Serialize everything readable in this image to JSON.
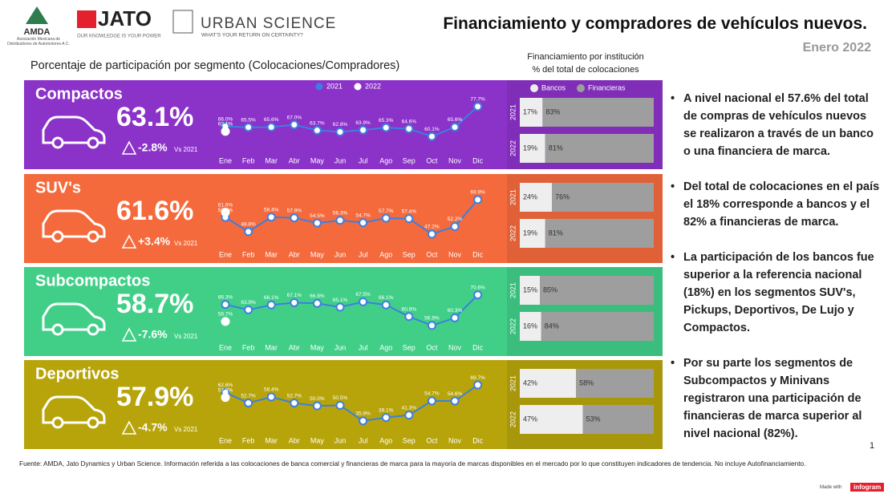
{
  "logos": {
    "amda": "AMDA",
    "amda_sub": "Asociación Mexicana de Distribuidores de Automotores A.C.",
    "jato": "JATO",
    "jato_tagline": "OUR KNOWLEDGE IS YOUR POWER",
    "urban": "URBAN SCIENCE",
    "urban_tagline": "WHAT'S YOUR RETURN ON CERTAINTY?"
  },
  "header": {
    "title": "Financiamiento y compradores de vehículos nuevos.",
    "date": "Enero 2022",
    "subtitle": "Porcentaje de participación por segmento (Colocaciones/Compradores)"
  },
  "segments": [
    {
      "name": "Compactos",
      "headline": "63.1%",
      "delta": "-2.8%",
      "vs": "Vs 2021",
      "color": "#8b32c8"
    },
    {
      "name": "SUV's",
      "headline": "61.6%",
      "delta": "+3.4%",
      "vs": "Vs 2021",
      "color": "#f46a3c"
    },
    {
      "name": "Subcompactos",
      "headline": "58.7%",
      "delta": "-7.6%",
      "vs": "Vs 2021",
      "color": "#41cf88"
    },
    {
      "name": "Deportivos",
      "headline": "57.9%",
      "delta": "-4.7%",
      "vs": "Vs 2021",
      "color": "#b7a40b"
    }
  ],
  "chart_data": [
    {
      "type": "line",
      "categories": [
        "Ene",
        "Feb",
        "Mar",
        "Abr",
        "May",
        "Jun",
        "Jul",
        "Ago",
        "Sep",
        "Oct",
        "Nov",
        "Dic"
      ],
      "ylim": [
        55,
        80
      ],
      "series": [
        {
          "name": "2021",
          "color": "#3d7fe0",
          "values": [
            66.0,
            65.5,
            65.6,
            67.0,
            63.7,
            62.8,
            63.9,
            65.3,
            64.6,
            60.1,
            65.6,
            77.7
          ],
          "value_labels": [
            "66.0%",
            "65.5%",
            "65.6%",
            "67.0%",
            "63.7%",
            "62.8%",
            "63.9%",
            "65.3%",
            "64.6%",
            "60.1%",
            "65.6%",
            "77.7%"
          ]
        },
        {
          "name": "2022",
          "color": "#ffffff",
          "values": [
            63.1,
            null,
            null,
            null,
            null,
            null,
            null,
            null,
            null,
            null,
            null,
            null
          ],
          "value_labels": [
            "63.1%",
            null,
            null,
            null,
            null,
            null,
            null,
            null,
            null,
            null,
            null,
            null
          ]
        }
      ]
    },
    {
      "type": "line",
      "categories": [
        "Ene",
        "Feb",
        "Mar",
        "Abr",
        "May",
        "Jun",
        "Jul",
        "Ago",
        "Sep",
        "Oct",
        "Nov",
        "Dic"
      ],
      "ylim": [
        44,
        72
      ],
      "series": [
        {
          "color": "#3d7fe0",
          "values": [
            58.2,
            48.8,
            58.4,
            57.9,
            54.5,
            56.3,
            54.7,
            57.7,
            57.4,
            47.2,
            52.2,
            69.9
          ],
          "value_labels": [
            "58.2%",
            "48.8%",
            "58.4%",
            "57.9%",
            "54.5%",
            "56.3%",
            "54.7%",
            "57.7%",
            "57.4%",
            "47.2%",
            "52.2%",
            "69.9%"
          ]
        },
        {
          "color": "#ffffff",
          "values": [
            61.6,
            null,
            null,
            null,
            null,
            null,
            null,
            null,
            null,
            null,
            null,
            null
          ],
          "value_labels": [
            "61.6%",
            null,
            null,
            null,
            null,
            null,
            null,
            null,
            null,
            null,
            null,
            null
          ]
        }
      ]
    },
    {
      "type": "line",
      "categories": [
        "Ene",
        "Feb",
        "Mar",
        "Abr",
        "May",
        "Jun",
        "Jul",
        "Ago",
        "Sep",
        "Oct",
        "Nov",
        "Dic"
      ],
      "ylim": [
        54,
        73
      ],
      "series": [
        {
          "color": "#3d7fe0",
          "values": [
            66.3,
            63.9,
            66.1,
            67.1,
            66.8,
            65.1,
            67.5,
            66.1,
            60.9,
            56.9,
            60.3,
            70.6
          ],
          "value_labels": [
            "66.3%",
            "63.9%",
            "66.1%",
            "67.1%",
            "66.8%",
            "65.1%",
            "67.5%",
            "66.1%",
            "60.9%",
            "56.9%",
            "60.3%",
            "70.6%"
          ]
        },
        {
          "color": "#ffffff",
          "values": [
            58.7,
            null,
            null,
            null,
            null,
            null,
            null,
            null,
            null,
            null,
            null,
            null
          ],
          "value_labels": [
            "58.7%",
            null,
            null,
            null,
            null,
            null,
            null,
            null,
            null,
            null,
            null,
            null
          ]
        }
      ]
    },
    {
      "type": "line",
      "categories": [
        "Ene",
        "Feb",
        "Mar",
        "Abr",
        "May",
        "Jun",
        "Jul",
        "Ago",
        "Sep",
        "Oct",
        "Nov",
        "Dic"
      ],
      "ylim": [
        32,
        72
      ],
      "series": [
        {
          "color": "#3d7fe0",
          "values": [
            62.6,
            52.7,
            58.4,
            52.7,
            50.0,
            50.5,
            35.9,
            39.1,
            41.3,
            54.7,
            54.6,
            69.7
          ],
          "value_labels": [
            "62.6%",
            "52.7%",
            "58.4%",
            "52.7%",
            "50.0%",
            "50.5%",
            "35.9%",
            "39.1%",
            "41.3%",
            "54.7%",
            "54.6%",
            "69.7%"
          ]
        },
        {
          "color": "#ffffff",
          "values": [
            57.9,
            null,
            null,
            null,
            null,
            null,
            null,
            null,
            null,
            null,
            null,
            null
          ],
          "value_labels": [
            "57.9%",
            null,
            null,
            null,
            null,
            null,
            null,
            null,
            null,
            null,
            null,
            null
          ]
        }
      ]
    },
    {
      "type": "stacked_barh",
      "title": "Financiamiento por institución",
      "subtitle": "% del total de colocaciones",
      "categories": [
        "2021",
        "2022"
      ],
      "xlim": [
        0,
        100
      ],
      "series": [
        {
          "name": "Bancos",
          "color": "#eeeeee",
          "values": [
            17,
            19
          ],
          "value_labels": [
            "17%",
            "19%"
          ]
        },
        {
          "name": "Financieras",
          "color": "#9e9e9e",
          "values": [
            83,
            81
          ],
          "value_labels": [
            "83%",
            "81%"
          ]
        }
      ]
    },
    {
      "type": "stacked_barh",
      "categories": [
        "2021",
        "2022"
      ],
      "xlim": [
        0,
        100
      ],
      "series": [
        {
          "color": "#eeeeee",
          "values": [
            24,
            19
          ],
          "value_labels": [
            "24%",
            "19%"
          ]
        },
        {
          "color": "#9e9e9e",
          "values": [
            76,
            81
          ],
          "value_labels": [
            "76%",
            "81%"
          ]
        }
      ]
    },
    {
      "type": "stacked_barh",
      "categories": [
        "2021",
        "2022"
      ],
      "xlim": [
        0,
        100
      ],
      "series": [
        {
          "color": "#eeeeee",
          "values": [
            15,
            16
          ],
          "value_labels": [
            "15%",
            "16%"
          ]
        },
        {
          "color": "#9e9e9e",
          "values": [
            85,
            84
          ],
          "value_labels": [
            "85%",
            "84%"
          ]
        }
      ]
    },
    {
      "type": "stacked_barh",
      "categories": [
        "2021",
        "2022"
      ],
      "xlim": [
        0,
        100
      ],
      "series": [
        {
          "color": "#eeeeee",
          "values": [
            42,
            47
          ],
          "value_labels": [
            "42%",
            "47%"
          ]
        },
        {
          "color": "#9e9e9e",
          "values": [
            58,
            53
          ],
          "value_labels": [
            "58%",
            "53%"
          ]
        }
      ]
    }
  ],
  "bullets": [
    "A nivel nacional el 57.6% del total de compras de vehículos nuevos se realizaron a través de un banco o una financiera de marca.",
    "Del total de colocaciones en el país el 18% corresponde a bancos y el 82% a financieras de marca.",
    "La participación de los bancos fue superior a la referencia nacional (18%) en los segmentos SUV's, Pickups, Deportivos, De Lujo y Compactos.",
    "Por su parte los segmentos de Subcompactos y Minivans registraron una participación de financieras de marca superior al nivel nacional (82%)."
  ],
  "page_number": "1",
  "footer": {
    "source": "Fuente: AMDA, Jato Dynamics y Urban Science. Información referida a las colocaciones de banca comercial y financieras de marca para la mayoría de marcas disponibles en el mercado por lo que constituyen indicadores de tendencia. No incluye Autofinanciamiento.",
    "made_with": "Made with",
    "brand": "infogram"
  }
}
